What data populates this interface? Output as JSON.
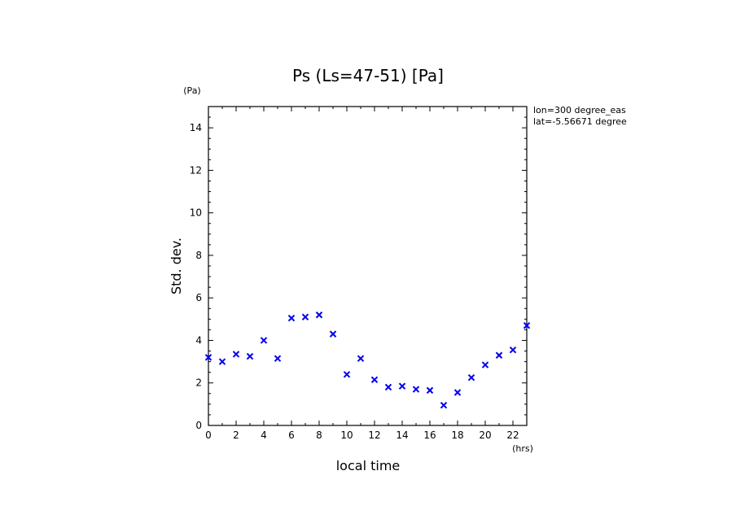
{
  "chart_data": {
    "type": "scatter",
    "title": "Ps (Ls=47-51) [Pa]",
    "xlabel": "local time",
    "ylabel": "Std. dev.",
    "x_unit": "(hrs)",
    "y_unit": "(Pa)",
    "annotations": [
      "lon=300 degree_eas",
      "lat=-5.56671 degree"
    ],
    "xlim": [
      0,
      23
    ],
    "ylim": [
      0,
      15
    ],
    "x_ticks": [
      0,
      2,
      4,
      6,
      8,
      10,
      12,
      14,
      16,
      18,
      20,
      22
    ],
    "x_tick_labels": [
      "0",
      "2",
      "4",
      "6",
      "8",
      "10",
      "12",
      "14",
      "16",
      "18",
      "20",
      "22"
    ],
    "y_ticks": [
      0,
      2,
      4,
      6,
      8,
      10,
      12,
      14
    ],
    "y_tick_labels": [
      "0",
      "2",
      "4",
      "6",
      "8",
      "10",
      "12",
      "14"
    ],
    "marker": "x",
    "color": "#0000ee",
    "grid": false,
    "series": [
      {
        "x": [
          0,
          1,
          2,
          3,
          4,
          5,
          6,
          7,
          8,
          9,
          10,
          11,
          12,
          13,
          14,
          15,
          16,
          17,
          18,
          19,
          20,
          21,
          22,
          23
        ],
        "values": [
          3.2,
          3.0,
          3.35,
          3.25,
          4.0,
          3.15,
          5.05,
          5.1,
          5.2,
          4.3,
          2.4,
          3.15,
          2.15,
          1.8,
          1.85,
          1.7,
          1.65,
          0.95,
          1.55,
          2.25,
          2.85,
          3.3,
          3.55,
          4.7
        ]
      }
    ]
  }
}
